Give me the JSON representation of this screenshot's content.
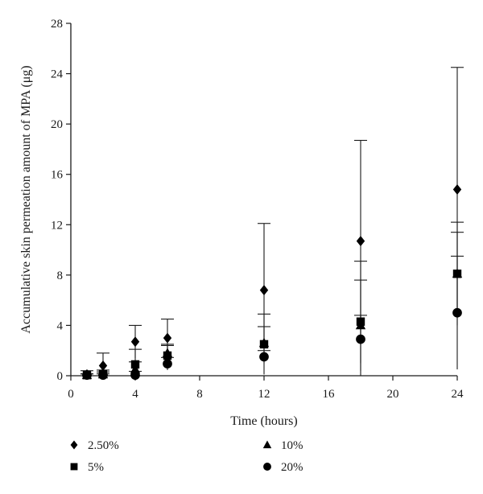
{
  "chart_data": {
    "type": "scatter",
    "title": "",
    "xlabel": "Time (hours)",
    "ylabel": "Accumulative skin permeation amount of MPA (μg)",
    "xlim": [
      0,
      24
    ],
    "ylim": [
      0,
      28
    ],
    "xticks": [
      0,
      4,
      8,
      12,
      16,
      20,
      24
    ],
    "yticks": [
      0,
      4,
      8,
      12,
      16,
      20,
      24,
      28
    ],
    "grid": false,
    "legend_position": "bottom",
    "series": [
      {
        "name": "2.50%",
        "marker": "diamond",
        "x": [
          1,
          2,
          4,
          6,
          12,
          18,
          24
        ],
        "y": [
          0.1,
          0.8,
          2.7,
          3.0,
          6.8,
          10.7,
          14.8
        ],
        "error": [
          0.3,
          1.0,
          1.3,
          1.5,
          5.3,
          8.0,
          9.7
        ]
      },
      {
        "name": "5%",
        "marker": "square",
        "x": [
          1,
          2,
          4,
          6,
          12,
          18,
          24
        ],
        "y": [
          0.05,
          0.15,
          0.9,
          1.6,
          2.5,
          4.3,
          8.1
        ],
        "error": [
          0.1,
          0.3,
          1.2,
          0.8,
          2.4,
          4.8,
          4.1
        ]
      },
      {
        "name": "10%",
        "marker": "triangle",
        "x": [
          1,
          2,
          4,
          6,
          12,
          18,
          24
        ],
        "y": [
          0.05,
          0.1,
          0.5,
          1.8,
          2.6,
          4.0,
          8.1
        ],
        "error": [
          0.1,
          0.2,
          0.6,
          0.7,
          1.3,
          3.6,
          3.3
        ]
      },
      {
        "name": "20%",
        "marker": "circle",
        "x": [
          1,
          2,
          4,
          6,
          12,
          18,
          24
        ],
        "y": [
          0.05,
          0.05,
          0.05,
          0.95,
          1.5,
          2.9,
          5.0
        ],
        "error": [
          0.1,
          0.1,
          0.3,
          0.5,
          0.5,
          1.9,
          4.5
        ]
      }
    ]
  }
}
